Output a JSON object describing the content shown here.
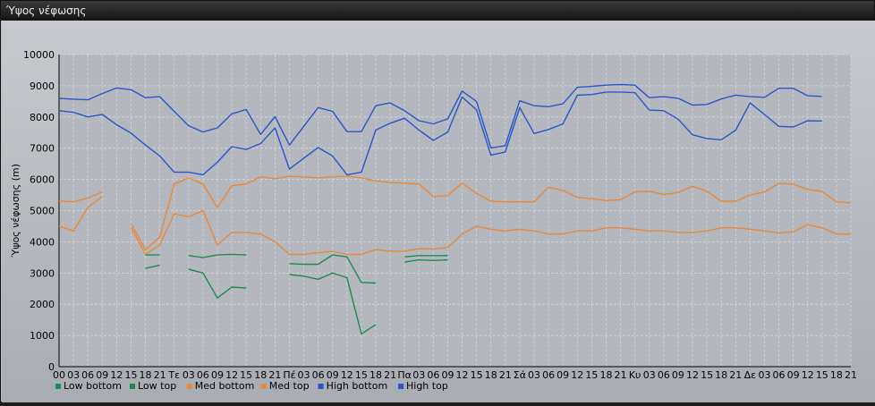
{
  "window": {
    "title": "Ύψος νέφωσης"
  },
  "chart_data": {
    "type": "line",
    "title": "",
    "ylabel": "Ύψος νέφωσης (m)",
    "xlabel": "",
    "ylim": [
      0,
      10000
    ],
    "yticks": [
      0,
      1000,
      2000,
      3000,
      4000,
      5000,
      6000,
      7000,
      8000,
      9000,
      10000
    ],
    "grid": true,
    "legend_position": "bottom-left",
    "x_tick_labels": [
      "00",
      "03",
      "06",
      "09",
      "12",
      "15",
      "18",
      "21",
      "Τε",
      "03",
      "06",
      "09",
      "12",
      "15",
      "18",
      "21",
      "Πέ",
      "03",
      "06",
      "09",
      "12",
      "15",
      "18",
      "21",
      "Πα",
      "03",
      "06",
      "09",
      "12",
      "15",
      "18",
      "21",
      "Σά",
      "03",
      "06",
      "09",
      "12",
      "15",
      "18",
      "21",
      "Κυ",
      "03",
      "06",
      "09",
      "12",
      "15",
      "18",
      "21",
      "Δε",
      "03",
      "06",
      "09",
      "12",
      "15",
      "18",
      "21"
    ],
    "series": [
      {
        "name": "Low bottom",
        "color": "#1e8a50",
        "values": [
          null,
          null,
          null,
          null,
          null,
          null,
          3150,
          3250,
          null,
          3120,
          3000,
          2200,
          2550,
          2520,
          null,
          null,
          2950,
          2900,
          2800,
          3000,
          2850,
          1050,
          1350,
          null,
          3350,
          3420,
          3400,
          3420,
          null,
          null,
          null,
          null,
          null,
          null,
          null,
          null,
          null,
          null,
          null,
          null,
          null,
          null,
          null,
          null,
          null,
          null,
          null,
          null,
          null,
          null,
          null,
          null,
          null,
          null,
          null,
          null
        ]
      },
      {
        "name": "Low top",
        "color": "#1e8a50",
        "values": [
          null,
          null,
          null,
          null,
          null,
          null,
          3580,
          3580,
          null,
          3560,
          3500,
          3580,
          3600,
          3580,
          null,
          null,
          3300,
          3280,
          3280,
          3580,
          3520,
          2700,
          2680,
          null,
          3520,
          3560,
          3560,
          3560,
          null,
          null,
          null,
          null,
          null,
          null,
          null,
          null,
          null,
          null,
          null,
          null,
          null,
          null,
          null,
          null,
          null,
          null,
          null,
          null,
          null,
          null,
          null,
          null,
          null,
          null,
          null,
          null
        ]
      },
      {
        "name": "Med bottom",
        "color": "#e8893a",
        "values": [
          4500,
          4350,
          5100,
          5450,
          null,
          4450,
          3600,
          3900,
          4900,
          4800,
          5000,
          3900,
          4300,
          4300,
          4250,
          4000,
          3600,
          3600,
          3650,
          3700,
          3600,
          3600,
          3750,
          3700,
          3700,
          3780,
          3770,
          3820,
          4250,
          4500,
          4400,
          4350,
          4400,
          4350,
          4250,
          4250,
          4350,
          4350,
          4450,
          4450,
          4400,
          4350,
          4350,
          4300,
          4300,
          4350,
          4450,
          4450,
          4400,
          4350,
          4280,
          4320,
          4550,
          4450,
          4250,
          4250
        ]
      },
      {
        "name": "Med top",
        "color": "#e8893a",
        "values": [
          5300,
          5280,
          5400,
          5600,
          null,
          4580,
          3750,
          4150,
          5850,
          6050,
          5850,
          5100,
          5800,
          5850,
          6080,
          6020,
          6100,
          6080,
          6050,
          6080,
          6100,
          6050,
          5950,
          5900,
          5880,
          5850,
          5450,
          5480,
          5880,
          5550,
          5300,
          5280,
          5280,
          5280,
          5750,
          5650,
          5420,
          5380,
          5320,
          5350,
          5600,
          5620,
          5520,
          5580,
          5780,
          5620,
          5300,
          5300,
          5500,
          5600,
          5870,
          5850,
          5680,
          5620,
          5280,
          5250
        ]
      },
      {
        "name": "High bottom",
        "color": "#2a55c9",
        "values": [
          8200,
          8150,
          8000,
          8080,
          7750,
          7480,
          7100,
          6750,
          6230,
          6230,
          6150,
          6550,
          7050,
          6960,
          7150,
          7650,
          6330,
          6680,
          7020,
          6750,
          6150,
          6230,
          7580,
          7800,
          7960,
          7580,
          7250,
          7520,
          8640,
          8230,
          6780,
          6880,
          8300,
          7470,
          7600,
          7780,
          8700,
          8720,
          8800,
          8800,
          8780,
          8220,
          8200,
          7930,
          7430,
          7310,
          7270,
          7580,
          8450,
          8080,
          7700,
          7680,
          7880,
          7870,
          null,
          null
        ]
      },
      {
        "name": "High top",
        "color": "#2a55c9",
        "values": [
          8600,
          8570,
          8550,
          8750,
          8930,
          8870,
          8620,
          8650,
          8180,
          7720,
          7520,
          7650,
          8100,
          8240,
          7440,
          8010,
          7100,
          7700,
          8300,
          8180,
          7530,
          7530,
          8360,
          8450,
          8200,
          7880,
          7780,
          7940,
          8830,
          8500,
          7010,
          7080,
          8520,
          8360,
          8330,
          8420,
          8950,
          8980,
          9020,
          9040,
          9020,
          8620,
          8650,
          8600,
          8380,
          8400,
          8580,
          8700,
          8650,
          8630,
          8920,
          8920,
          8680,
          8660,
          null,
          null
        ]
      }
    ]
  }
}
